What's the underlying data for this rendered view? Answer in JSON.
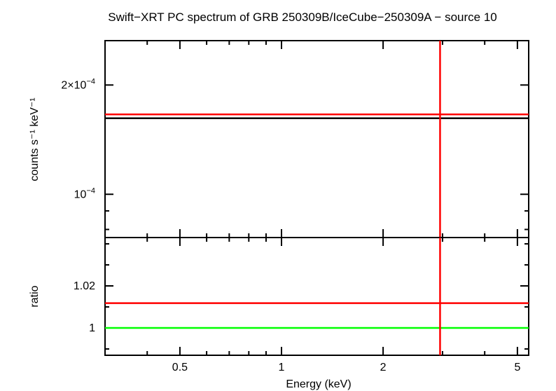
{
  "chart_data": {
    "title": "Swift−XRT PC spectrum of GRB 250309B/IceCube−250309A − source 10",
    "xlabel": "Energy (keV)",
    "x_scale": "log",
    "xlim": [
      0.3,
      5.4
    ],
    "x_ticks": [
      {
        "value": 0.5,
        "label": "0.5"
      },
      {
        "value": 1,
        "label": "1"
      },
      {
        "value": 2,
        "label": "2"
      },
      {
        "value": 5,
        "label": "5"
      }
    ],
    "colors": {
      "model": "#ff0000",
      "data": "#000000",
      "unity": "#00ff00",
      "frame": "#000000"
    },
    "panels": [
      {
        "id": "top",
        "type": "line",
        "ylabel": "counts s⁻¹ keV⁻¹",
        "y_scale": "log",
        "ylim": [
          7.6e-05,
          0.000265
        ],
        "y_ticks": [
          {
            "value": 0.0002,
            "label_base": "2×10",
            "label_exp": "−4"
          },
          {
            "value": 0.0001,
            "label_base": "10",
            "label_exp": "−4"
          }
        ],
        "series": [
          {
            "role": "data",
            "color": "#000000",
            "x": [
              0.3,
              5.4
            ],
            "y": [
              0.000162,
              0.000162
            ]
          },
          {
            "role": "model",
            "color": "#ff0000",
            "x": [
              0.3,
              5.4
            ],
            "y": [
              0.000166,
              0.000166
            ]
          }
        ],
        "vline": {
          "x": 2.95,
          "color": "#ff0000"
        }
      },
      {
        "id": "bottom",
        "type": "line",
        "ylabel": "ratio",
        "y_scale": "linear",
        "ylim": [
          0.987,
          1.043
        ],
        "y_ticks": [
          {
            "value": 1.02,
            "label": "1.02"
          },
          {
            "value": 1.0,
            "label": "1"
          }
        ],
        "series": [
          {
            "role": "unity",
            "color": "#00ff00",
            "x": [
              0.3,
              5.4
            ],
            "y": [
              1.0,
              1.0
            ]
          },
          {
            "role": "ratio",
            "color": "#ff0000",
            "x": [
              0.3,
              5.4
            ],
            "y": [
              1.0118,
              1.0118
            ]
          }
        ],
        "vline": {
          "x": 2.95,
          "color": "#ff0000"
        }
      }
    ]
  }
}
